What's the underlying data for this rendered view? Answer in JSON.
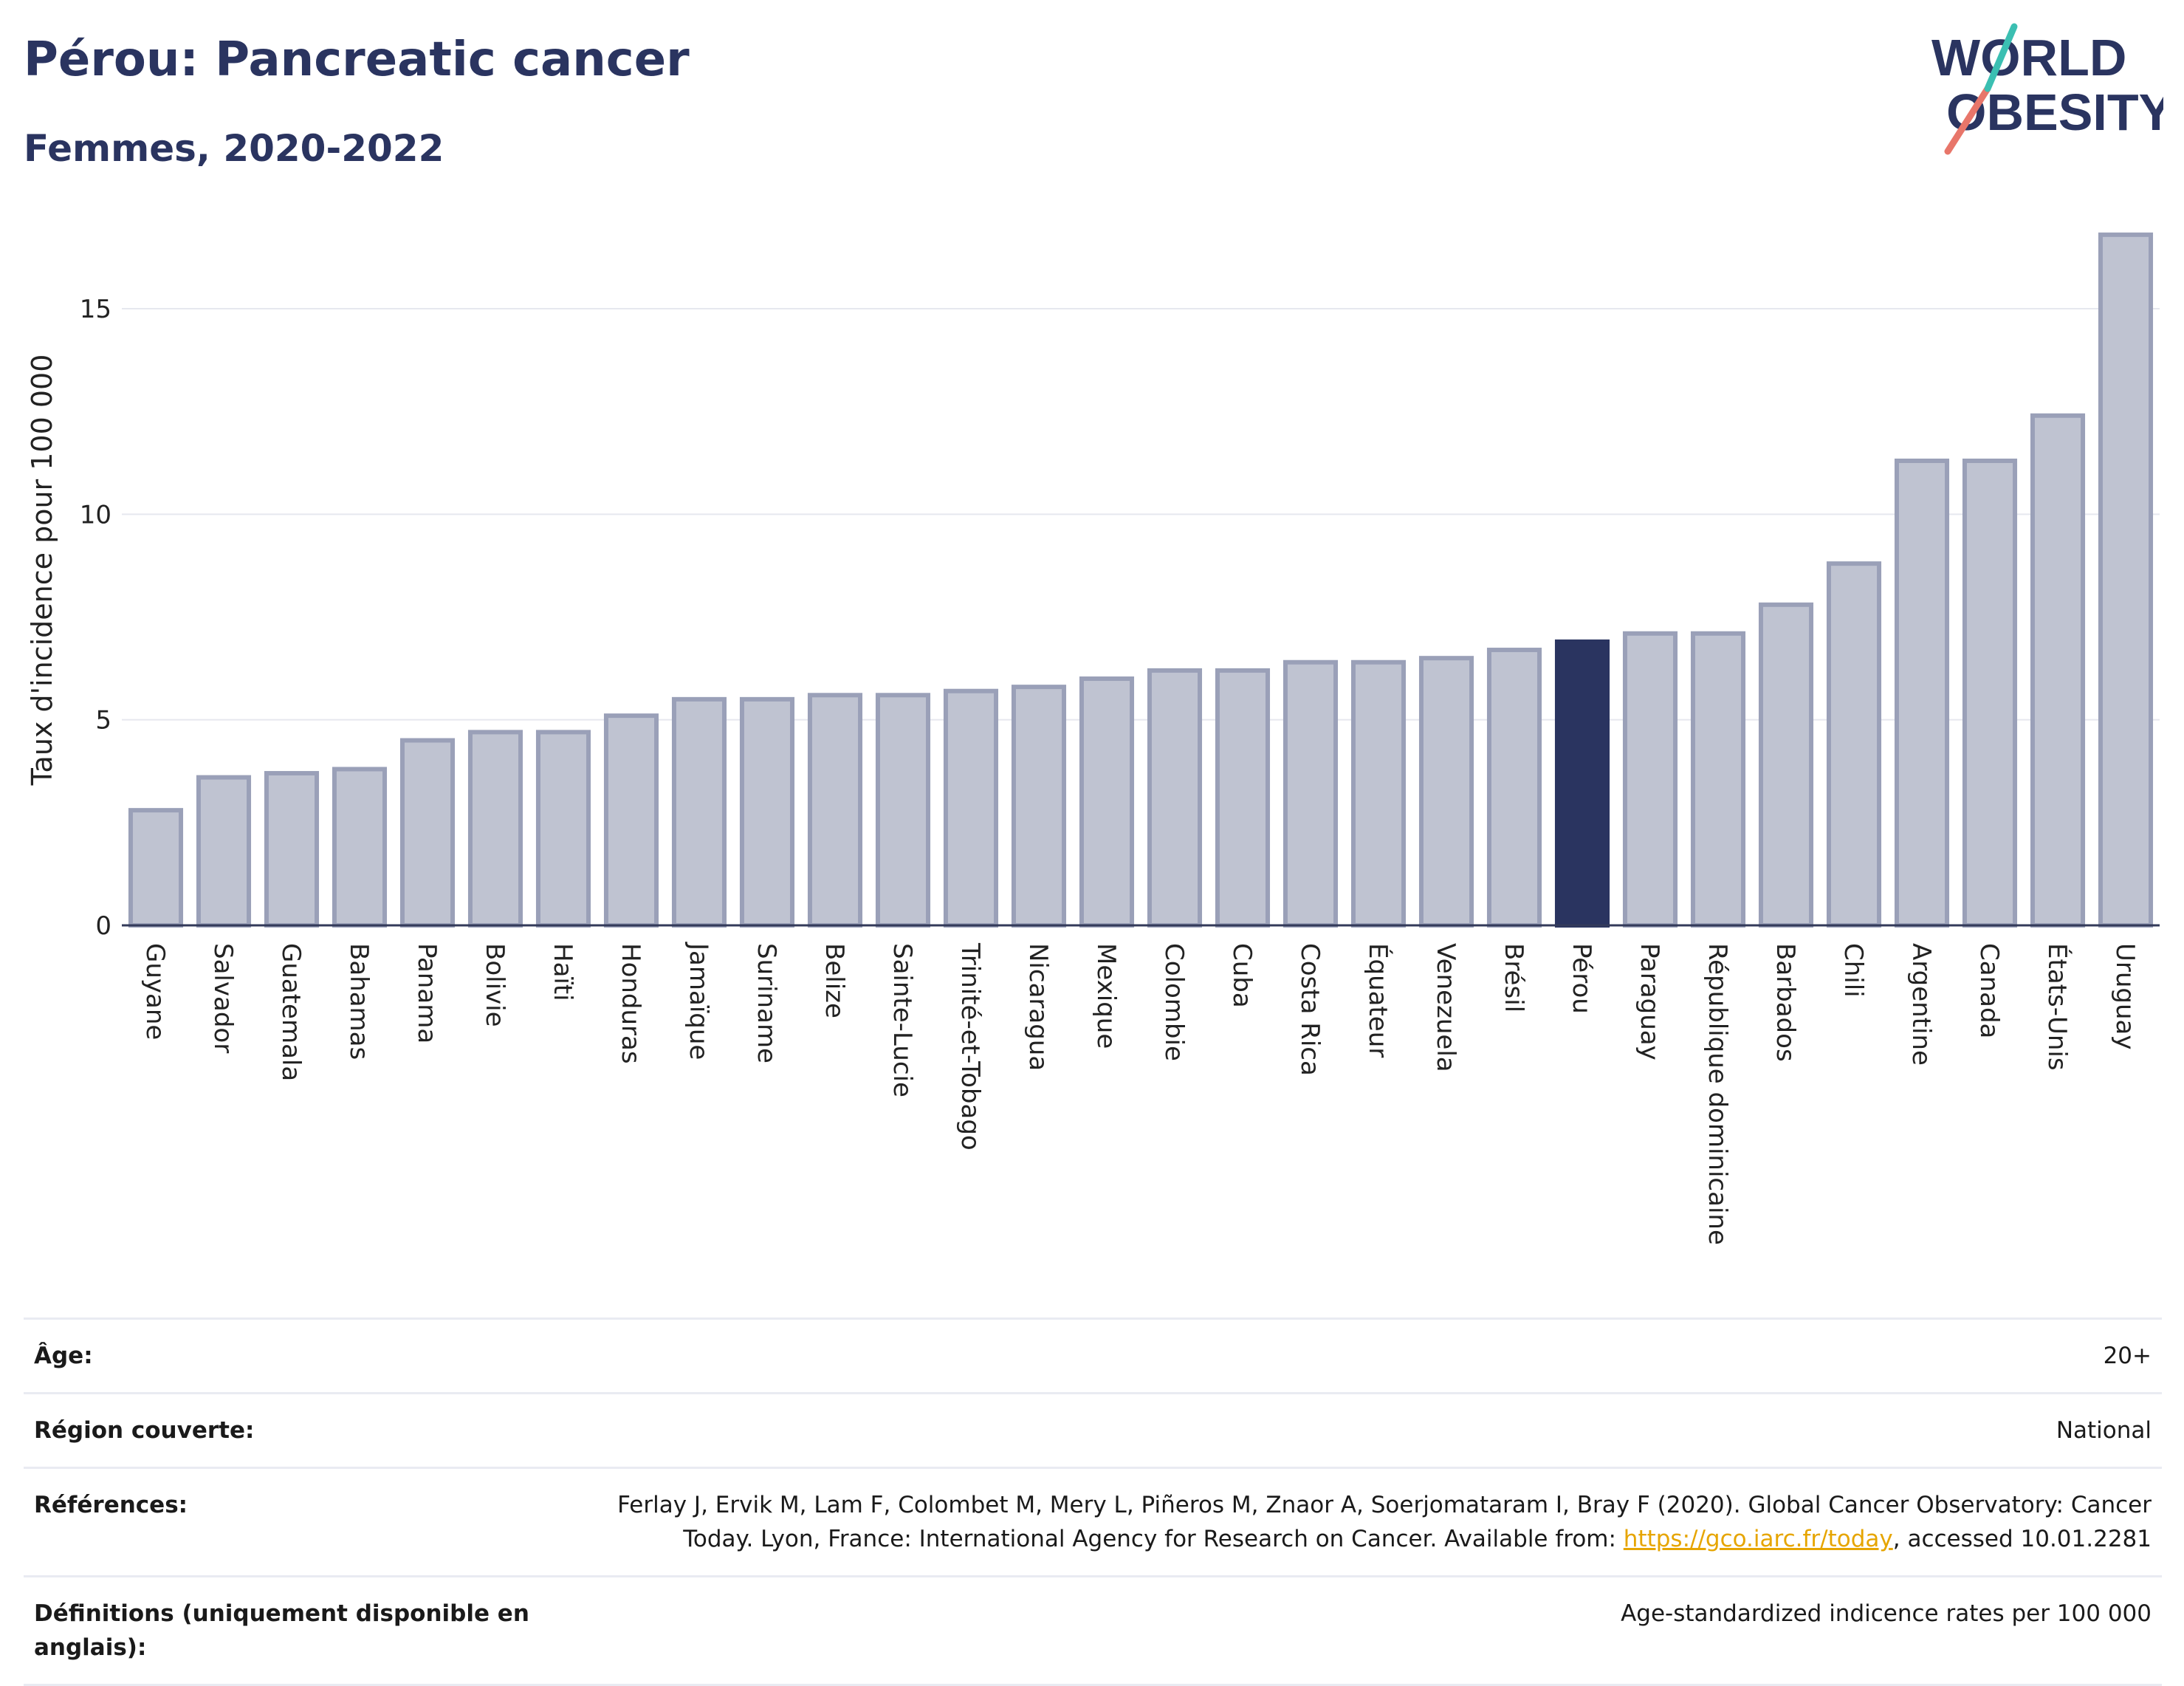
{
  "header": {
    "title": "Pérou: Pancreatic cancer",
    "subtitle": "Femmes, 2020-2022"
  },
  "logo": {
    "line1": "WORLD",
    "line2": "OBESITY"
  },
  "colors": {
    "bar": "#bfc3d1",
    "bar_border": "#9aa0b8",
    "highlight": "#2a3460",
    "title": "#2a3460",
    "grid": "#e6e8ef"
  },
  "chart_data": {
    "type": "bar",
    "ylabel": "Taux d'incidence pour 100 000",
    "ylim": [
      0,
      17.3
    ],
    "yticks": [
      0,
      5,
      10,
      15
    ],
    "highlight": "Pérou",
    "categories": [
      "Guyane",
      "Salvador",
      "Guatemala",
      "Bahamas",
      "Panama",
      "Bolivie",
      "Haïti",
      "Honduras",
      "Jamaïque",
      "Suriname",
      "Belize",
      "Sainte-Lucie",
      "Trinité-et-Tobago",
      "Nicaragua",
      "Mexique",
      "Colombie",
      "Cuba",
      "Costa Rica",
      "Équateur",
      "Venezuela",
      "Brésil",
      "Pérou",
      "Paraguay",
      "République dominicaine",
      "Barbados",
      "Chili",
      "Argentine",
      "Canada",
      "États-Unis",
      "Uruguay"
    ],
    "values": [
      2.8,
      3.6,
      3.7,
      3.8,
      4.5,
      4.7,
      4.7,
      5.1,
      5.5,
      5.5,
      5.6,
      5.6,
      5.7,
      5.8,
      6.0,
      6.2,
      6.2,
      6.4,
      6.4,
      6.5,
      6.7,
      6.9,
      7.1,
      7.1,
      7.8,
      8.8,
      11.3,
      11.3,
      12.4,
      16.8
    ]
  },
  "info": [
    {
      "label": "Âge:",
      "value": "20+"
    },
    {
      "label": "Région couverte:",
      "value": "National"
    },
    {
      "label": "Références:",
      "value_before": "Ferlay J, Ervik M, Lam F, Colombet M, Mery L, Piñeros M, Znaor A, Soerjomataram I, Bray F (2020). Global Cancer Observatory: Cancer Today. Lyon, France: International Agency for Research on Cancer. Available from: ",
      "link": "https://gco.iarc.fr/today",
      "value_after": ", accessed 10.01.2281"
    },
    {
      "label": "Définitions (uniquement disponible en anglais):",
      "value": "Age-standardized indicence rates per 100 000"
    }
  ]
}
